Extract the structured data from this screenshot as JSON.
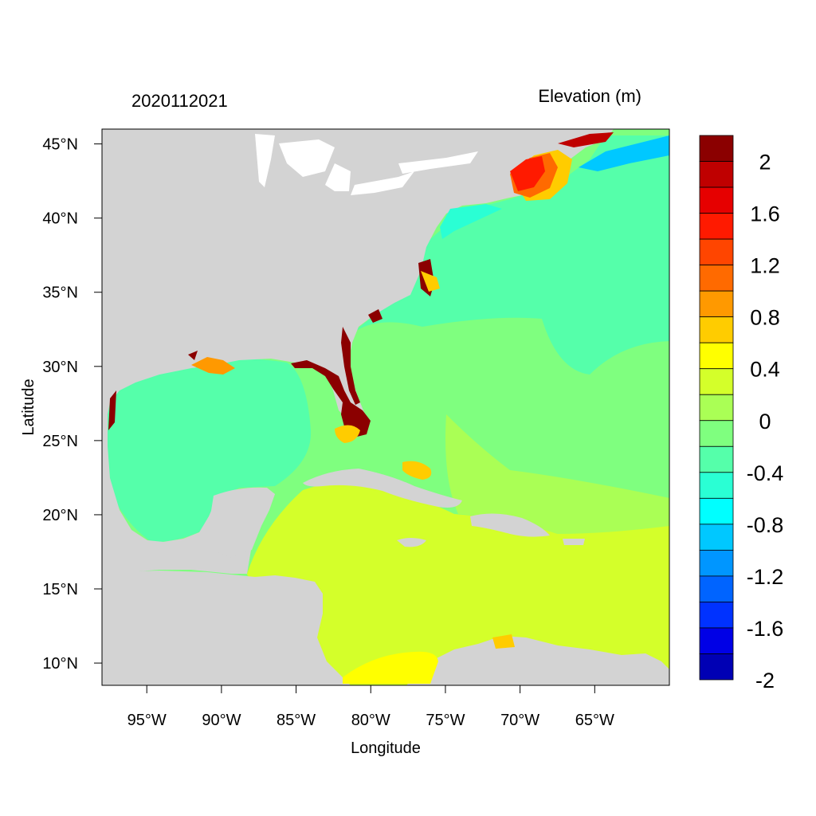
{
  "map": {
    "left_title": "2020112021",
    "right_title": "Elevation (m)",
    "xlabel": "Longitude",
    "ylabel": "Latitude",
    "lon_range": [
      -98,
      -60
    ],
    "lat_range": [
      8.5,
      46
    ],
    "x_ticks": [
      {
        "value": -95,
        "label": "95°W"
      },
      {
        "value": -90,
        "label": "90°W"
      },
      {
        "value": -85,
        "label": "85°W"
      },
      {
        "value": -80,
        "label": "80°W"
      },
      {
        "value": -75,
        "label": "75°W"
      },
      {
        "value": -70,
        "label": "70°W"
      },
      {
        "value": -65,
        "label": "65°W"
      }
    ],
    "y_ticks": [
      {
        "value": 45,
        "label": "45°N"
      },
      {
        "value": 40,
        "label": "40°N"
      },
      {
        "value": 35,
        "label": "35°N"
      },
      {
        "value": 30,
        "label": "30°N"
      },
      {
        "value": 25,
        "label": "25°N"
      },
      {
        "value": 20,
        "label": "20°N"
      },
      {
        "value": 15,
        "label": "15°N"
      },
      {
        "value": 10,
        "label": "10°N"
      }
    ],
    "land_color": "#d3d3d3"
  },
  "colorbar": {
    "colors_top_to_bottom": [
      "#8b0000",
      "#bf0000",
      "#e60000",
      "#ff1a00",
      "#ff4500",
      "#ff6a00",
      "#ff9900",
      "#ffcc00",
      "#ffff00",
      "#d4ff2a",
      "#aaff55",
      "#7fff7f",
      "#55ffaa",
      "#2affd4",
      "#00ffff",
      "#00c8ff",
      "#0096ff",
      "#0064ff",
      "#0032ff",
      "#0000e6",
      "#0000b4"
    ],
    "labels": [
      {
        "boundary": 1,
        "text": "2"
      },
      {
        "boundary": 3,
        "text": "1.6"
      },
      {
        "boundary": 5,
        "text": "1.2"
      },
      {
        "boundary": 7,
        "text": "0.8"
      },
      {
        "boundary": 9,
        "text": "0.4"
      },
      {
        "boundary": 11,
        "text": "0"
      },
      {
        "boundary": 13,
        "text": "-0.4"
      },
      {
        "boundary": 15,
        "text": "-0.8"
      },
      {
        "boundary": 17,
        "text": "-1.2"
      },
      {
        "boundary": 19,
        "text": "-1.6"
      },
      {
        "boundary": 21,
        "text": "-2"
      }
    ]
  }
}
